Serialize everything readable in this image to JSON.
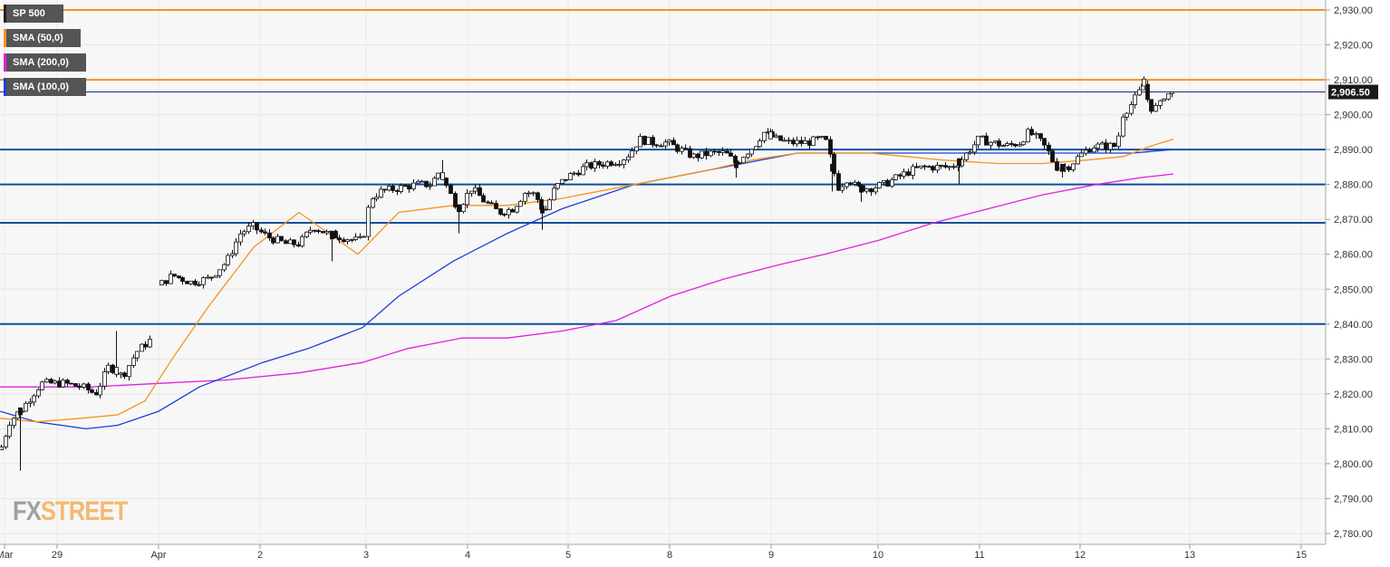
{
  "legend": [
    {
      "label": "SP 500",
      "color": "#222222"
    },
    {
      "label": "SMA (50,0)",
      "color": "#f7931e"
    },
    {
      "label": "SMA (200,0)",
      "color": "#e020e0"
    },
    {
      "label": "SMA (100,0)",
      "color": "#1c3fd6"
    }
  ],
  "logo": {
    "part1": "FX",
    "part2": "STREET"
  },
  "chart_data": {
    "type": "candlestick",
    "title": "SP 500",
    "ylim": [
      2775,
      2933
    ],
    "y_ticks": [
      2780,
      2790,
      2800,
      2810,
      2820,
      2830,
      2840,
      2850,
      2860,
      2870,
      2880,
      2890,
      2900,
      2910,
      2920,
      2930
    ],
    "y_tick_labels": [
      "2,780.00",
      "2,790.00",
      "2,800.00",
      "2,810.00",
      "2,820.00",
      "2,830.00",
      "2,840.00",
      "2,850.00",
      "2,860.00",
      "2,870.00",
      "2,880.00",
      "2,890.00",
      "2,900.00",
      "2,910.00",
      "2,920.00",
      "2,930.00"
    ],
    "x_labels": [
      "Mar",
      "29",
      "Apr",
      "2",
      "3",
      "4",
      "5",
      "8",
      "9",
      "10",
      "11",
      "12",
      "13",
      "15"
    ],
    "current_price": "2,906.50",
    "current_value": 2906.5,
    "horizontal_levels": [
      {
        "value": 2930,
        "color": "#f7931e"
      },
      {
        "value": 2910,
        "color": "#f7931e"
      },
      {
        "value": 2890,
        "color": "#0d4f9e"
      },
      {
        "value": 2880,
        "color": "#0d4f9e"
      },
      {
        "value": 2869,
        "color": "#0d4f9e"
      },
      {
        "value": 2840,
        "color": "#0d4f9e"
      }
    ],
    "session_close_anchors": [
      [
        0,
        2804
      ],
      [
        10,
        2812
      ],
      [
        25,
        2816
      ],
      [
        45,
        2823
      ],
      [
        70,
        2823
      ],
      [
        90,
        2822
      ],
      [
        105,
        2820
      ],
      [
        120,
        2828
      ],
      [
        135,
        2825
      ],
      [
        150,
        2832
      ],
      [
        168,
        2836
      ],
      [
        175,
        2851
      ],
      [
        190,
        2854
      ],
      [
        210,
        2852
      ],
      [
        230,
        2853
      ],
      [
        250,
        2858
      ],
      [
        265,
        2866
      ],
      [
        278,
        2868
      ],
      [
        295,
        2865
      ],
      [
        315,
        2863
      ],
      [
        330,
        2863
      ],
      [
        345,
        2868
      ],
      [
        360,
        2866
      ],
      [
        375,
        2865
      ],
      [
        392,
        2864
      ],
      [
        400,
        2864
      ],
      [
        408,
        2876
      ],
      [
        420,
        2878
      ],
      [
        440,
        2879
      ],
      [
        460,
        2880
      ],
      [
        475,
        2880
      ],
      [
        485,
        2884
      ],
      [
        495,
        2878
      ],
      [
        505,
        2873
      ],
      [
        520,
        2879
      ],
      [
        535,
        2875
      ],
      [
        550,
        2872
      ],
      [
        565,
        2873
      ],
      [
        580,
        2878
      ],
      [
        590,
        2877
      ],
      [
        600,
        2872
      ],
      [
        612,
        2879
      ],
      [
        625,
        2882
      ],
      [
        645,
        2885
      ],
      [
        665,
        2886
      ],
      [
        685,
        2887
      ],
      [
        695,
        2889
      ],
      [
        705,
        2893
      ],
      [
        720,
        2892
      ],
      [
        735,
        2892
      ],
      [
        750,
        2890
      ],
      [
        765,
        2888
      ],
      [
        785,
        2889
      ],
      [
        800,
        2889
      ],
      [
        812,
        2886
      ],
      [
        822,
        2889
      ],
      [
        832,
        2891
      ],
      [
        842,
        2895
      ],
      [
        856,
        2893
      ],
      [
        870,
        2892
      ],
      [
        890,
        2892
      ],
      [
        905,
        2893
      ],
      [
        912,
        2892
      ],
      [
        918,
        2885
      ],
      [
        925,
        2879
      ],
      [
        935,
        2882
      ],
      [
        945,
        2879
      ],
      [
        960,
        2879
      ],
      [
        975,
        2880
      ],
      [
        990,
        2882
      ],
      [
        1005,
        2884
      ],
      [
        1020,
        2885
      ],
      [
        1035,
        2885
      ],
      [
        1050,
        2885
      ],
      [
        1060,
        2887
      ],
      [
        1070,
        2890
      ],
      [
        1080,
        2893
      ],
      [
        1095,
        2892
      ],
      [
        1110,
        2891
      ],
      [
        1125,
        2892
      ],
      [
        1135,
        2895
      ],
      [
        1145,
        2893
      ],
      [
        1155,
        2890
      ],
      [
        1165,
        2885
      ],
      [
        1178,
        2885
      ],
      [
        1190,
        2888
      ],
      [
        1205,
        2891
      ],
      [
        1220,
        2891
      ],
      [
        1232,
        2891
      ],
      [
        1238,
        2900
      ],
      [
        1248,
        2903
      ],
      [
        1256,
        2906
      ],
      [
        1262,
        2909
      ],
      [
        1268,
        2902
      ],
      [
        1278,
        2902
      ],
      [
        1285,
        2906
      ],
      [
        1295,
        2906
      ]
    ],
    "big_wicks": [
      [
        22,
        2798
      ],
      [
        128,
        2838
      ],
      [
        366,
        2858
      ],
      [
        488,
        2887
      ],
      [
        506,
        2866
      ],
      [
        598,
        2867
      ],
      [
        812,
        2882
      ],
      [
        850,
        2896
      ],
      [
        918,
        2878
      ],
      [
        950,
        2875
      ],
      [
        1058,
        2880
      ],
      [
        1172,
        2882
      ],
      [
        1262,
        2911
      ]
    ],
    "sma50": [
      [
        0,
        2813
      ],
      [
        40,
        2812
      ],
      [
        90,
        2813
      ],
      [
        130,
        2814
      ],
      [
        160,
        2818
      ],
      [
        190,
        2830
      ],
      [
        230,
        2845
      ],
      [
        280,
        2862
      ],
      [
        330,
        2872
      ],
      [
        395,
        2860
      ],
      [
        440,
        2872
      ],
      [
        500,
        2874
      ],
      [
        560,
        2874
      ],
      [
        620,
        2876
      ],
      [
        700,
        2880
      ],
      [
        780,
        2884
      ],
      [
        830,
        2887
      ],
      [
        880,
        2889
      ],
      [
        920,
        2889
      ],
      [
        960,
        2889
      ],
      [
        1000,
        2888
      ],
      [
        1040,
        2887
      ],
      [
        1100,
        2886
      ],
      [
        1150,
        2886
      ],
      [
        1200,
        2887
      ],
      [
        1240,
        2888
      ],
      [
        1270,
        2891
      ],
      [
        1295,
        2893
      ]
    ],
    "sma100": [
      [
        0,
        2815
      ],
      [
        40,
        2812
      ],
      [
        95,
        2810
      ],
      [
        130,
        2811
      ],
      [
        175,
        2815
      ],
      [
        220,
        2822
      ],
      [
        290,
        2829
      ],
      [
        340,
        2833
      ],
      [
        400,
        2839
      ],
      [
        440,
        2848
      ],
      [
        500,
        2858
      ],
      [
        560,
        2866
      ],
      [
        620,
        2873
      ],
      [
        700,
        2880
      ],
      [
        760,
        2883
      ],
      [
        820,
        2886
      ],
      [
        880,
        2889
      ],
      [
        920,
        2889
      ],
      [
        980,
        2889
      ],
      [
        1040,
        2889
      ],
      [
        1100,
        2889
      ],
      [
        1150,
        2889
      ],
      [
        1200,
        2889
      ],
      [
        1250,
        2889
      ],
      [
        1295,
        2890
      ]
    ],
    "sma200": [
      [
        0,
        2822
      ],
      [
        100,
        2822
      ],
      [
        175,
        2823
      ],
      [
        250,
        2824
      ],
      [
        330,
        2826
      ],
      [
        400,
        2829
      ],
      [
        450,
        2833
      ],
      [
        510,
        2836
      ],
      [
        560,
        2836
      ],
      [
        620,
        2838
      ],
      [
        680,
        2841
      ],
      [
        740,
        2848
      ],
      [
        800,
        2853
      ],
      [
        860,
        2857
      ],
      [
        910,
        2860
      ],
      [
        970,
        2864
      ],
      [
        1030,
        2869
      ],
      [
        1090,
        2873
      ],
      [
        1150,
        2877
      ],
      [
        1210,
        2880
      ],
      [
        1260,
        2882
      ],
      [
        1295,
        2883
      ]
    ]
  }
}
